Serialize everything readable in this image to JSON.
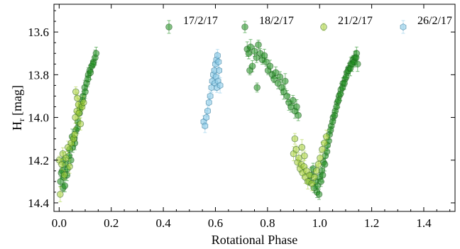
{
  "chart_data": {
    "type": "scatter",
    "xlabel": "Rotational Phase",
    "ylabel_main": "H",
    "ylabel_sub": "r",
    "ylabel_unit": "[mag]",
    "xlim": [
      -0.02,
      1.52
    ],
    "ylim": [
      14.44,
      13.47
    ],
    "y_inverted": true,
    "grid": false,
    "legend_position": "top",
    "x_ticks": [
      0.0,
      0.2,
      0.4,
      0.6,
      0.8,
      1.0,
      1.2,
      1.4
    ],
    "x_tick_labels": [
      "0.0",
      "0.2",
      "0.4",
      "0.6",
      "0.8",
      "1.0",
      "1.2",
      "1.4"
    ],
    "y_ticks": [
      13.6,
      13.8,
      14.0,
      14.2,
      14.4
    ],
    "y_tick_labels": [
      "13.6",
      "13.8",
      "14.0",
      "14.2",
      "14.4"
    ],
    "series": [
      {
        "name": "17/2/17",
        "marker": "circle",
        "color": "#1e8c1e",
        "points": [
          [
            0.005,
            14.3
          ],
          [
            0.012,
            14.25
          ],
          [
            0.018,
            14.28
          ],
          [
            0.025,
            14.22
          ],
          [
            0.032,
            14.24
          ],
          [
            0.038,
            14.18
          ],
          [
            0.045,
            14.2
          ],
          [
            0.052,
            14.14
          ],
          [
            0.058,
            14.1
          ],
          [
            0.065,
            14.06
          ],
          [
            0.072,
            14.02
          ],
          [
            0.078,
            13.98
          ],
          [
            0.085,
            13.94
          ],
          [
            0.092,
            13.9
          ],
          [
            0.098,
            13.86
          ],
          [
            0.105,
            13.84
          ],
          [
            0.112,
            13.8
          ],
          [
            0.118,
            13.78
          ],
          [
            0.125,
            13.76
          ],
          [
            0.132,
            13.74
          ],
          [
            0.138,
            13.72
          ],
          [
            0.142,
            13.7
          ],
          [
            0.015,
            14.33
          ],
          [
            0.022,
            14.32
          ],
          [
            0.06,
            14.12
          ],
          [
            0.975,
            14.24
          ],
          [
            0.985,
            14.3
          ],
          [
            0.992,
            14.32
          ],
          [
            1.0,
            14.28
          ],
          [
            1.008,
            14.25
          ],
          [
            1.015,
            14.21
          ],
          [
            1.022,
            14.18
          ],
          [
            1.03,
            14.13
          ],
          [
            1.038,
            14.08
          ],
          [
            1.045,
            14.04
          ],
          [
            1.052,
            14.0
          ],
          [
            1.06,
            13.97
          ],
          [
            1.068,
            13.93
          ],
          [
            1.075,
            13.9
          ],
          [
            1.082,
            13.87
          ],
          [
            1.09,
            13.84
          ],
          [
            1.098,
            13.82
          ],
          [
            1.105,
            13.79
          ],
          [
            1.112,
            13.77
          ],
          [
            1.12,
            13.75
          ],
          [
            1.128,
            13.73
          ],
          [
            1.135,
            13.72
          ],
          [
            1.142,
            13.7
          ]
        ]
      },
      {
        "name": "18/2/17",
        "marker": "circle",
        "color": "#1e8c1e",
        "points": [
          [
            0.008,
            14.26
          ],
          [
            0.016,
            14.2
          ],
          [
            0.03,
            14.27
          ],
          [
            0.04,
            14.15
          ],
          [
            0.05,
            14.09
          ],
          [
            0.07,
            14.05
          ],
          [
            0.08,
            13.96
          ],
          [
            0.09,
            13.92
          ],
          [
            0.1,
            13.88
          ],
          [
            0.11,
            13.82
          ],
          [
            0.12,
            13.79
          ],
          [
            0.13,
            13.75
          ],
          [
            0.722,
            13.68
          ],
          [
            0.728,
            13.7
          ],
          [
            0.735,
            13.67
          ],
          [
            0.742,
            13.76
          ],
          [
            0.75,
            13.69
          ],
          [
            0.758,
            13.72
          ],
          [
            0.765,
            13.66
          ],
          [
            0.772,
            13.7
          ],
          [
            0.78,
            13.73
          ],
          [
            0.788,
            13.71
          ],
          [
            0.795,
            13.74
          ],
          [
            0.802,
            13.78
          ],
          [
            0.81,
            13.76
          ],
          [
            0.818,
            13.8
          ],
          [
            0.825,
            13.82
          ],
          [
            0.832,
            13.79
          ],
          [
            0.84,
            13.84
          ],
          [
            0.848,
            13.81
          ],
          [
            0.855,
            13.86
          ],
          [
            0.862,
            13.88
          ],
          [
            0.868,
            13.83
          ],
          [
            0.875,
            13.9
          ],
          [
            0.882,
            13.93
          ],
          [
            0.89,
            13.95
          ],
          [
            0.898,
            13.92
          ],
          [
            0.905,
            13.97
          ],
          [
            0.912,
            13.95
          ],
          [
            0.918,
            13.99
          ],
          [
            0.732,
            13.78
          ],
          [
            0.76,
            13.86
          ],
          [
            0.96,
            14.3
          ],
          [
            0.968,
            14.27
          ],
          [
            0.978,
            14.33
          ],
          [
            0.99,
            14.35
          ],
          [
            0.998,
            14.36
          ],
          [
            1.005,
            14.3
          ],
          [
            1.012,
            14.27
          ],
          [
            1.02,
            14.22
          ],
          [
            1.028,
            14.16
          ],
          [
            1.035,
            14.11
          ],
          [
            1.042,
            14.06
          ],
          [
            1.05,
            14.02
          ],
          [
            1.058,
            13.99
          ],
          [
            1.065,
            13.95
          ],
          [
            1.072,
            13.92
          ],
          [
            1.08,
            13.89
          ],
          [
            1.088,
            13.86
          ],
          [
            1.095,
            13.84
          ],
          [
            1.102,
            13.81
          ],
          [
            1.11,
            13.78
          ],
          [
            1.118,
            13.77
          ],
          [
            1.125,
            13.75
          ],
          [
            1.132,
            13.74
          ],
          [
            1.14,
            13.72
          ],
          [
            1.146,
            13.75
          ]
        ]
      },
      {
        "name": "21/2/17",
        "marker": "circle",
        "color": "#a8cf3a",
        "points": [
          [
            0.0,
            14.2
          ],
          [
            0.004,
            14.36
          ],
          [
            0.01,
            14.22
          ],
          [
            0.014,
            14.17
          ],
          [
            0.02,
            14.27
          ],
          [
            0.026,
            14.19
          ],
          [
            0.034,
            14.14
          ],
          [
            0.04,
            14.23
          ],
          [
            0.046,
            14.12
          ],
          [
            0.055,
            14.1
          ],
          [
            0.062,
            14.0
          ],
          [
            0.068,
            13.97
          ],
          [
            0.074,
            13.94
          ],
          [
            0.064,
            13.88
          ],
          [
            0.07,
            13.91
          ],
          [
            0.076,
            13.98
          ],
          [
            0.082,
            14.03
          ],
          [
            0.088,
            13.95
          ],
          [
            0.094,
            13.93
          ],
          [
            0.06,
            14.08
          ],
          [
            0.9,
            14.17
          ],
          [
            0.905,
            14.1
          ],
          [
            0.91,
            14.15
          ],
          [
            0.915,
            14.21
          ],
          [
            0.92,
            14.19
          ],
          [
            0.925,
            14.24
          ],
          [
            0.93,
            14.22
          ],
          [
            0.935,
            14.26
          ],
          [
            0.94,
            14.23
          ],
          [
            0.945,
            14.28
          ],
          [
            0.95,
            14.25
          ],
          [
            0.955,
            14.3
          ],
          [
            0.962,
            14.27
          ],
          [
            0.97,
            14.31
          ],
          [
            0.98,
            14.28
          ],
          [
            0.988,
            14.25
          ],
          [
            0.995,
            14.22
          ],
          [
            1.002,
            14.19
          ],
          [
            1.01,
            14.15
          ],
          [
            1.018,
            14.12
          ],
          [
            1.026,
            14.09
          ],
          [
            0.932,
            14.14
          ],
          [
            0.942,
            14.18
          ]
        ]
      },
      {
        "name": "26/2/17",
        "marker": "hexagon",
        "color": "#8ccbe8",
        "points": [
          [
            0.555,
            14.02
          ],
          [
            0.56,
            14.04
          ],
          [
            0.565,
            14.0
          ],
          [
            0.57,
            13.97
          ],
          [
            0.575,
            13.93
          ],
          [
            0.58,
            13.9
          ],
          [
            0.585,
            13.86
          ],
          [
            0.588,
            13.83
          ],
          [
            0.592,
            13.8
          ],
          [
            0.596,
            13.78
          ],
          [
            0.6,
            13.75
          ],
          [
            0.604,
            13.73
          ],
          [
            0.608,
            13.71
          ],
          [
            0.612,
            13.74
          ],
          [
            0.598,
            13.84
          ],
          [
            0.602,
            13.81
          ],
          [
            0.606,
            13.86
          ],
          [
            0.61,
            13.83
          ],
          [
            0.614,
            13.78
          ],
          [
            0.618,
            13.85
          ]
        ]
      }
    ]
  }
}
